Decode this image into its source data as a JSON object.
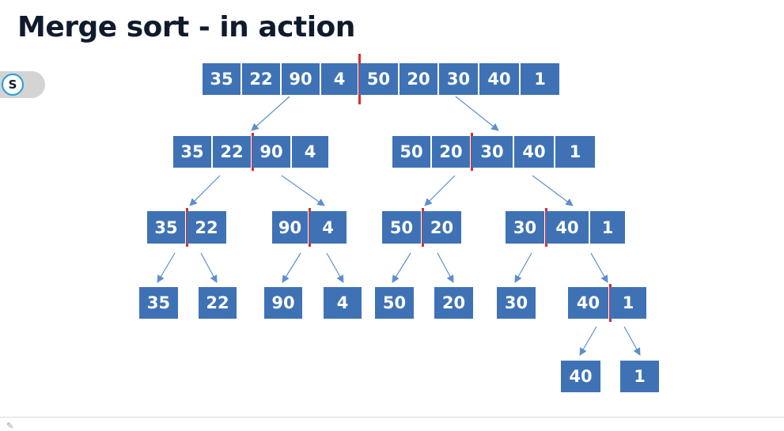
{
  "title": "Merge sort - in action",
  "toggle": {
    "label": "S"
  },
  "colors": {
    "cell": "#3e72b5",
    "divider": "#e02b2b",
    "arrow": "#5b8fce"
  },
  "levels": [
    {
      "level": 0,
      "arrays": [
        {
          "values": [
            "35",
            "22",
            "90",
            "4",
            "50",
            "20",
            "30",
            "40",
            "1"
          ],
          "split_after": 4
        }
      ]
    },
    {
      "level": 1,
      "arrays": [
        {
          "values": [
            "35",
            "22",
            "90",
            "4"
          ],
          "split_after": 2
        },
        {
          "values": [
            "50",
            "20",
            "30",
            "40",
            "1"
          ],
          "split_after": 2
        }
      ]
    },
    {
      "level": 2,
      "arrays": [
        {
          "values": [
            "35",
            "22"
          ],
          "split_after": 1
        },
        {
          "values": [
            "90",
            "4"
          ],
          "split_after": 1
        },
        {
          "values": [
            "50",
            "20"
          ],
          "split_after": 1
        },
        {
          "values": [
            "30",
            "40",
            "1"
          ],
          "split_after": 1
        }
      ]
    },
    {
      "level": 3,
      "arrays": [
        {
          "values": [
            "35"
          ]
        },
        {
          "values": [
            "22"
          ]
        },
        {
          "values": [
            "90"
          ]
        },
        {
          "values": [
            "4"
          ]
        },
        {
          "values": [
            "50"
          ]
        },
        {
          "values": [
            "20"
          ]
        },
        {
          "values": [
            "30"
          ]
        },
        {
          "values": [
            "40",
            "1"
          ],
          "split_after": 1
        }
      ]
    },
    {
      "level": 4,
      "arrays": [
        {
          "values": [
            "40"
          ]
        },
        {
          "values": [
            "1"
          ]
        }
      ]
    }
  ]
}
